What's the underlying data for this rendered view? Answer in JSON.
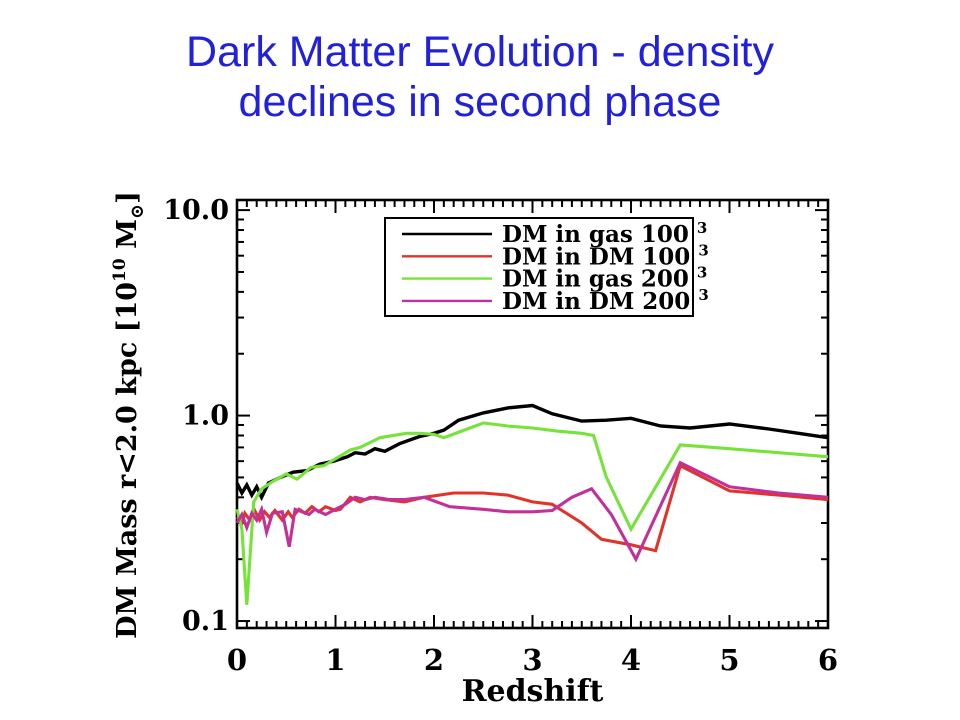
{
  "title": {
    "line1": "Dark Matter Evolution - density",
    "line2": "declines in second phase",
    "color": "#2121DC"
  },
  "chart_data": {
    "type": "line",
    "xlabel": "Redshift",
    "ylabel_parts": [
      {
        "t": "DM Mass r<2.0 kpc [10",
        "style": "normal"
      },
      {
        "t": "10",
        "style": "sup"
      },
      {
        "t": " M",
        "style": "normal"
      },
      {
        "t": "⊙",
        "style": "sub"
      },
      {
        "t": "]",
        "style": "normal"
      }
    ],
    "yscale": "log",
    "xlim": [
      0,
      6
    ],
    "ylim": [
      0.0925,
      11.2
    ],
    "x_tick_labels": [
      "0",
      "1",
      "2",
      "3",
      "4",
      "5",
      "6"
    ],
    "x_tick_values": [
      0,
      1,
      2,
      3,
      4,
      5,
      6
    ],
    "x_minor_step": 0.1,
    "y_tick_labels": [
      "10.0",
      "1.0",
      "0.1"
    ],
    "y_tick_values": [
      10,
      1,
      0.1
    ],
    "grid": false,
    "legend_position": "top-center-inside",
    "frame_color": "#000000",
    "series": [
      {
        "name": "DM in gas 100",
        "exponent": "3",
        "color": "#000000",
        "x": [
          0,
          0.05,
          0.1,
          0.15,
          0.2,
          0.25,
          0.32,
          0.44,
          0.57,
          0.71,
          0.84,
          0.98,
          1.12,
          1.2,
          1.3,
          1.4,
          1.5,
          1.65,
          1.85,
          2.0,
          2.1,
          2.25,
          2.5,
          2.75,
          3.0,
          3.2,
          3.5,
          3.75,
          4.0,
          4.3,
          4.6,
          5.0,
          5.4,
          5.7,
          6.0
        ],
        "y": [
          0.47,
          0.42,
          0.46,
          0.41,
          0.45,
          0.4,
          0.47,
          0.5,
          0.53,
          0.54,
          0.58,
          0.6,
          0.63,
          0.66,
          0.65,
          0.69,
          0.67,
          0.73,
          0.79,
          0.82,
          0.85,
          0.95,
          1.03,
          1.09,
          1.12,
          1.02,
          0.94,
          0.95,
          0.97,
          0.89,
          0.87,
          0.91,
          0.86,
          0.82,
          0.78
        ]
      },
      {
        "name": "DM in DM 100",
        "exponent": "3",
        "color": "#E2332A",
        "x": [
          0,
          0.05,
          0.08,
          0.13,
          0.18,
          0.23,
          0.28,
          0.33,
          0.385,
          0.46,
          0.52,
          0.56,
          0.63,
          0.69,
          0.76,
          0.83,
          0.9,
          1.0,
          1.05,
          1.15,
          1.25,
          1.35,
          1.5,
          1.7,
          1.9,
          2.2,
          2.5,
          2.75,
          3.0,
          3.2,
          3.5,
          3.7,
          4.0,
          4.25,
          4.5,
          5.0,
          5.5,
          6.0
        ],
        "y": [
          0.32,
          0.3,
          0.335,
          0.31,
          0.345,
          0.31,
          0.34,
          0.32,
          0.345,
          0.31,
          0.34,
          0.32,
          0.35,
          0.335,
          0.36,
          0.34,
          0.36,
          0.345,
          0.35,
          0.4,
          0.38,
          0.4,
          0.39,
          0.38,
          0.4,
          0.42,
          0.42,
          0.41,
          0.38,
          0.37,
          0.3,
          0.25,
          0.235,
          0.22,
          0.57,
          0.43,
          0.41,
          0.39
        ]
      },
      {
        "name": "DM in gas 200",
        "exponent": "3",
        "color": "#76E33A",
        "x": [
          0,
          0.05,
          0.1,
          0.17,
          0.25,
          0.37,
          0.5,
          0.61,
          0.75,
          0.88,
          1.01,
          1.15,
          1.25,
          1.45,
          1.72,
          1.86,
          2.0,
          2.1,
          2.5,
          2.75,
          3.0,
          3.25,
          3.5,
          3.62,
          3.75,
          4.0,
          4.5,
          5.0,
          5.5,
          6.0
        ],
        "y": [
          0.35,
          0.28,
          0.12,
          0.38,
          0.44,
          0.48,
          0.52,
          0.49,
          0.56,
          0.57,
          0.62,
          0.68,
          0.7,
          0.78,
          0.82,
          0.82,
          0.81,
          0.78,
          0.92,
          0.89,
          0.87,
          0.84,
          0.82,
          0.8,
          0.5,
          0.28,
          0.72,
          0.69,
          0.66,
          0.63
        ]
      },
      {
        "name": "DM in DM 200",
        "exponent": "3",
        "color": "#C2309A",
        "x": [
          0,
          0.05,
          0.1,
          0.15,
          0.2,
          0.25,
          0.3,
          0.36,
          0.46,
          0.53,
          0.59,
          0.66,
          0.73,
          0.79,
          0.9,
          1.0,
          1.1,
          1.2,
          1.3,
          1.4,
          1.55,
          1.7,
          1.9,
          2.16,
          2.5,
          2.75,
          3.0,
          3.2,
          3.4,
          3.6,
          3.8,
          4.05,
          4.5,
          5.0,
          5.5,
          6.0
        ],
        "y": [
          0.3,
          0.33,
          0.285,
          0.335,
          0.31,
          0.35,
          0.27,
          0.335,
          0.34,
          0.23,
          0.35,
          0.34,
          0.33,
          0.35,
          0.33,
          0.35,
          0.37,
          0.4,
          0.39,
          0.4,
          0.39,
          0.39,
          0.4,
          0.36,
          0.35,
          0.34,
          0.34,
          0.345,
          0.4,
          0.44,
          0.33,
          0.2,
          0.59,
          0.45,
          0.42,
          0.4
        ]
      }
    ]
  }
}
